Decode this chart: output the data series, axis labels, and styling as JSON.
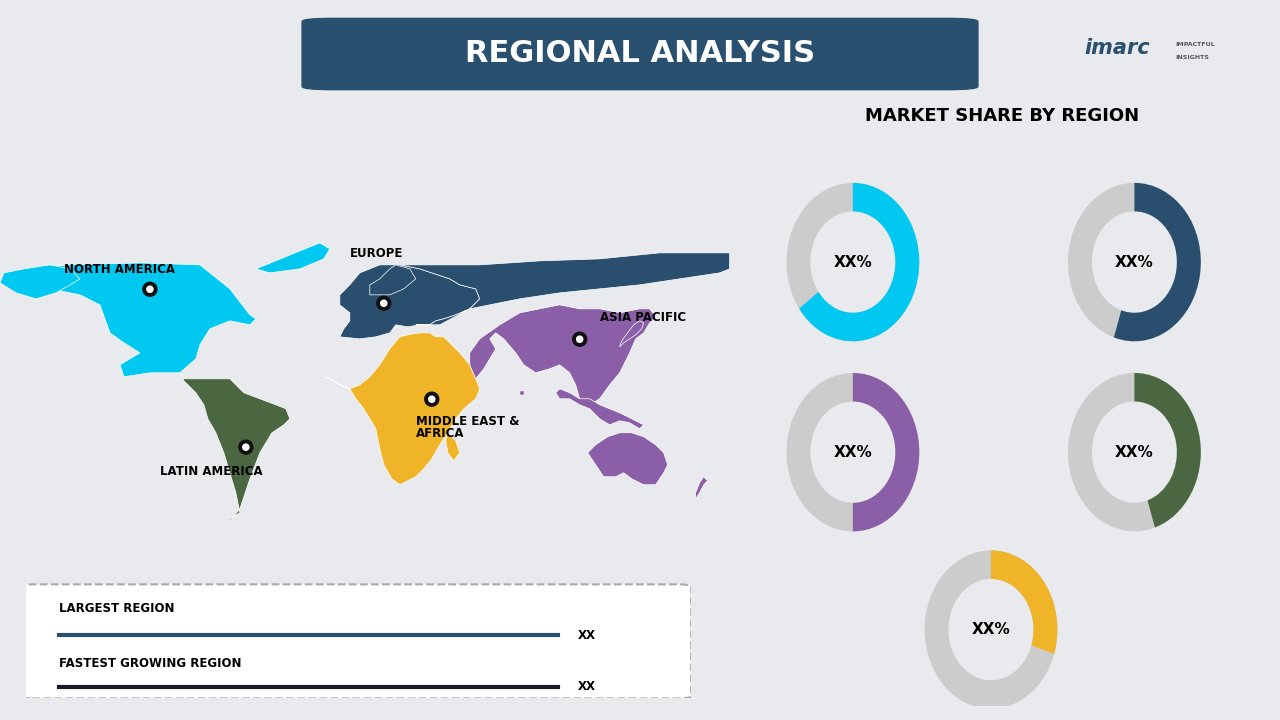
{
  "title": "REGIONAL ANALYSIS",
  "title_bg_color": "#2a5070",
  "title_text_color": "#ffffff",
  "bg_color": "#e8eaed",
  "right_panel_bg": "#f0f2f4",
  "market_share_title": "MARKET SHARE BY REGION",
  "donut_regions": [
    {
      "label": "North America",
      "color": "#00c8f0",
      "value": 0.65
    },
    {
      "label": "Europe",
      "color": "#2a4f6e",
      "value": 0.55
    },
    {
      "label": "Latin America",
      "color": "#8b5ea8",
      "value": 0.5
    },
    {
      "label": "Middle East & Africa",
      "color": "#4a6741",
      "value": 0.45
    },
    {
      "label": "Asia Pacific",
      "color": "#f0b429",
      "value": 0.3
    }
  ],
  "donut_gray": "#cccccc",
  "donut_text": "XX%",
  "region_colors": {
    "north_america": "#00c8f0",
    "europe": "#2a4f6e",
    "latin_america": "#4a6741",
    "middle_east_africa": "#f0b429",
    "asia_pacific": "#8b5ea8"
  },
  "legend_largest": "LARGEST REGION",
  "legend_fastest": "FASTEST GROWING REGION",
  "legend_value": "XX",
  "legend_bar_color1": "#2a5070",
  "legend_bar_color2": "#1a1a2e",
  "divider_color": "#aaaaaa"
}
